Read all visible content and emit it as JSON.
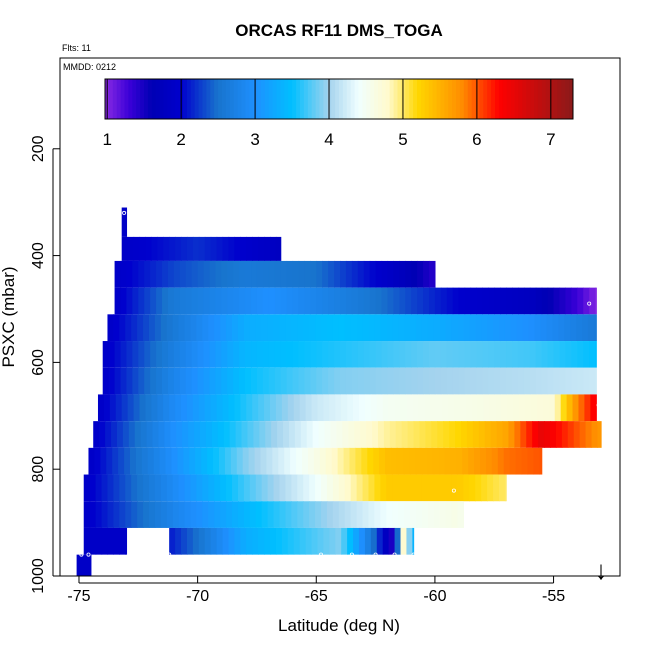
{
  "chart_data": {
    "type": "heatmap",
    "title": "ORCAS RF11 DMS_TOGA",
    "annotations": {
      "flights": "Flts: 11",
      "date": "MMDD: 0212"
    },
    "xlabel": "Latitude (deg N)",
    "ylabel": "PSXC (mbar)",
    "xlim": [
      -75.8,
      -52.2
    ],
    "ylim": [
      1000,
      30
    ],
    "y_reversed": true,
    "x_ticks": [
      -75,
      -70,
      -65,
      -60,
      -55
    ],
    "x_tick_labels": [
      "-75",
      "-70",
      "-65",
      "-60",
      "-55"
    ],
    "y_ticks": [
      200,
      400,
      600,
      800,
      1000
    ],
    "y_tick_labels": [
      "200",
      "400",
      "600",
      "800",
      "1000"
    ],
    "grid": false,
    "legend": "colorbar-top",
    "colorbar": {
      "range": [
        0.97,
        7.3
      ],
      "ticks": [
        1,
        2,
        3,
        4,
        5,
        6,
        7
      ],
      "tick_labels": [
        "1",
        "2",
        "3",
        "4",
        "5",
        "6",
        "7"
      ],
      "stops": [
        {
          "v": 0.97,
          "color": "#8a2be2"
        },
        {
          "v": 1.3,
          "color": "#3a00d8"
        },
        {
          "v": 1.6,
          "color": "#0000b4"
        },
        {
          "v": 2.0,
          "color": "#0000cd"
        },
        {
          "v": 2.5,
          "color": "#1874cd"
        },
        {
          "v": 3.0,
          "color": "#1e90ff"
        },
        {
          "v": 3.5,
          "color": "#00bfff"
        },
        {
          "v": 4.0,
          "color": "#a4d3ee"
        },
        {
          "v": 4.4,
          "color": "#f0ffff"
        },
        {
          "v": 4.8,
          "color": "#fffacd"
        },
        {
          "v": 5.2,
          "color": "#ffd700"
        },
        {
          "v": 5.8,
          "color": "#ff8c00"
        },
        {
          "v": 6.3,
          "color": "#ff0000"
        },
        {
          "v": 7.3,
          "color": "#8b1a1a"
        }
      ]
    },
    "series": [
      {
        "p_top": 310,
        "p_bot": 320,
        "segments": [
          {
            "lat": [
              -73.2,
              -73.0
            ],
            "v": [
              1.9,
              1.9
            ]
          }
        ]
      },
      {
        "p_top": 320,
        "p_bot": 365,
        "segments": [
          {
            "lat": [
              -73.2,
              -73.0
            ],
            "v": [
              1.9,
              1.9
            ]
          }
        ]
      },
      {
        "p_top": 365,
        "p_bot": 410,
        "segments": [
          {
            "lat": [
              -73.2,
              -70.0,
              -66.5
            ],
            "v": [
              1.9,
              2.2,
              1.8
            ]
          }
        ]
      },
      {
        "p_top": 410,
        "p_bot": 460,
        "segments": [
          {
            "lat": [
              -73.5,
              -71.0,
              -68.0,
              -65.0,
              -62.0,
              -60.0
            ],
            "v": [
              1.9,
              2.3,
              2.6,
              2.5,
              1.9,
              1.4
            ]
          }
        ]
      },
      {
        "p_top": 460,
        "p_bot": 510,
        "segments": [
          {
            "lat": [
              -73.5,
              -71.0,
              -67.0,
              -63.0,
              -59.0,
              -56.0,
              -54.0,
              -53.2
            ],
            "v": [
              1.9,
              2.6,
              3.0,
              2.6,
              2.0,
              1.8,
              1.3,
              1.0
            ]
          }
        ]
      },
      {
        "p_top": 510,
        "p_bot": 560,
        "segments": [
          {
            "lat": [
              -73.8,
              -71.0,
              -68.0,
              -64.0,
              -60.0,
              -56.0,
              -53.2
            ],
            "v": [
              1.9,
              2.6,
              3.3,
              3.5,
              3.3,
              3.0,
              2.6
            ]
          }
        ]
      },
      {
        "p_top": 560,
        "p_bot": 610,
        "segments": [
          {
            "lat": [
              -74.0,
              -71.0,
              -68.0,
              -64.0,
              -60.0,
              -56.0,
              -53.2
            ],
            "v": [
              1.9,
              2.7,
              3.4,
              3.6,
              3.8,
              3.7,
              3.5
            ]
          }
        ]
      },
      {
        "p_top": 610,
        "p_bot": 660,
        "segments": [
          {
            "lat": [
              -74.0,
              -71.0,
              -68.0,
              -64.0,
              -60.0,
              -56.0,
              -53.2
            ],
            "v": [
              1.9,
              2.8,
              3.5,
              3.9,
              4.0,
              4.1,
              4.2
            ]
          }
        ]
      },
      {
        "p_top": 660,
        "p_bot": 710,
        "segments": [
          {
            "lat": [
              -74.2,
              -71.0,
              -68.0,
              -65.0,
              -62.0,
              -58.0,
              -55.0,
              -54.0,
              -53.2
            ],
            "v": [
              1.9,
              2.9,
              3.6,
              4.2,
              4.5,
              4.6,
              4.7,
              5.8,
              6.4
            ]
          }
        ]
      },
      {
        "p_top": 710,
        "p_bot": 760,
        "segments": [
          {
            "lat": [
              -74.4,
              -71.0,
              -68.0,
              -65.0,
              -62.0,
              -59.0,
              -57.0,
              -55.5,
              -54.0,
              -53.0
            ],
            "v": [
              1.9,
              3.0,
              3.7,
              4.4,
              4.9,
              5.2,
              5.6,
              6.5,
              6.0,
              5.7
            ]
          }
        ]
      },
      {
        "p_top": 760,
        "p_bot": 810,
        "segments": [
          {
            "lat": [
              -74.6,
              -71.0,
              -68.0,
              -65.0,
              -62.0,
              -59.0,
              -57.0,
              -55.5
            ],
            "v": [
              1.9,
              3.0,
              3.9,
              4.6,
              5.4,
              5.5,
              5.9,
              6.0
            ]
          }
        ]
      },
      {
        "p_top": 810,
        "p_bot": 860,
        "segments": [
          {
            "lat": [
              -74.8,
              -71.0,
              -68.0,
              -65.0,
              -62.0,
              -59.0,
              -57.0
            ],
            "v": [
              1.9,
              2.9,
              3.7,
              4.4,
              5.3,
              5.3,
              5.0
            ]
          }
        ]
      },
      {
        "p_top": 860,
        "p_bot": 910,
        "segments": [
          {
            "lat": [
              -74.8,
              -71.0,
              -68.0,
              -65.0,
              -62.0,
              -59.0,
              -58.8
            ],
            "v": [
              1.9,
              2.8,
              3.4,
              3.9,
              4.4,
              4.6,
              4.5
            ]
          }
        ]
      },
      {
        "p_top": 910,
        "p_bot": 960,
        "segments": [
          {
            "lat": [
              -74.8,
              -73.0
            ],
            "v": [
              1.9,
              1.9
            ]
          },
          {
            "lat": [
              -71.2,
              -70.0,
              -68.0,
              -66.0,
              -64.0,
              -62.5,
              -61.7,
              -61.3,
              -61.1,
              -60.9
            ],
            "v": [
              2.1,
              2.5,
              3.3,
              3.6,
              3.9,
              2.4,
              1.3,
              5.0,
              4.0,
              3.3
            ]
          }
        ]
      },
      {
        "p_top": 960,
        "p_bot": 1010,
        "segments": [
          {
            "lat": [
              -75.1,
              -74.5
            ],
            "v": [
              1.9,
              1.9
            ]
          }
        ]
      }
    ],
    "points_lat": [
      -74.9,
      -74.6,
      -73.1,
      -71.2,
      -64.8,
      -63.5,
      -62.5,
      -61.7,
      -60.9,
      -59.2,
      -53.5,
      -53.1,
      -53.0
    ],
    "points_p": [
      960,
      960,
      320,
      960,
      960,
      960,
      960,
      960,
      960,
      840,
      490,
      680,
      690
    ],
    "marker": {
      "label": "↓",
      "lat": -53.0
    }
  }
}
